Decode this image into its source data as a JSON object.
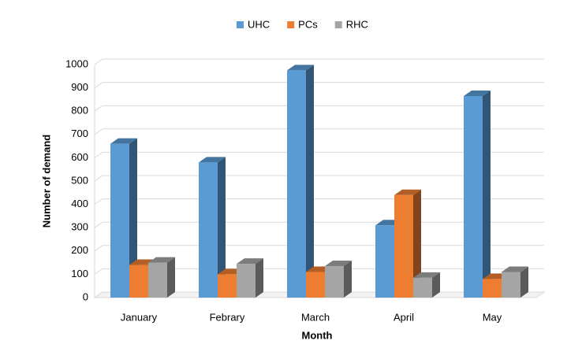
{
  "chart_data": {
    "type": "bar3d",
    "x_label": "Month",
    "y_label": "Number of demand",
    "categories": [
      "January",
      "Febrary",
      "March",
      "April",
      "May"
    ],
    "series": [
      {
        "name": "UHC",
        "color": "#5b9bd5",
        "values": [
          660,
          580,
          975,
          310,
          865
        ]
      },
      {
        "name": "PCs",
        "color": "#ed7d31",
        "values": [
          140,
          100,
          110,
          440,
          80
        ]
      },
      {
        "name": "RHC",
        "color": "#a5a5a5",
        "values": [
          150,
          145,
          135,
          85,
          110
        ]
      }
    ],
    "ylim": [
      0,
      1000
    ],
    "yticks": [
      0,
      100,
      200,
      300,
      400,
      500,
      600,
      700,
      800,
      900,
      1000
    ],
    "grid": true,
    "legend": "top"
  }
}
